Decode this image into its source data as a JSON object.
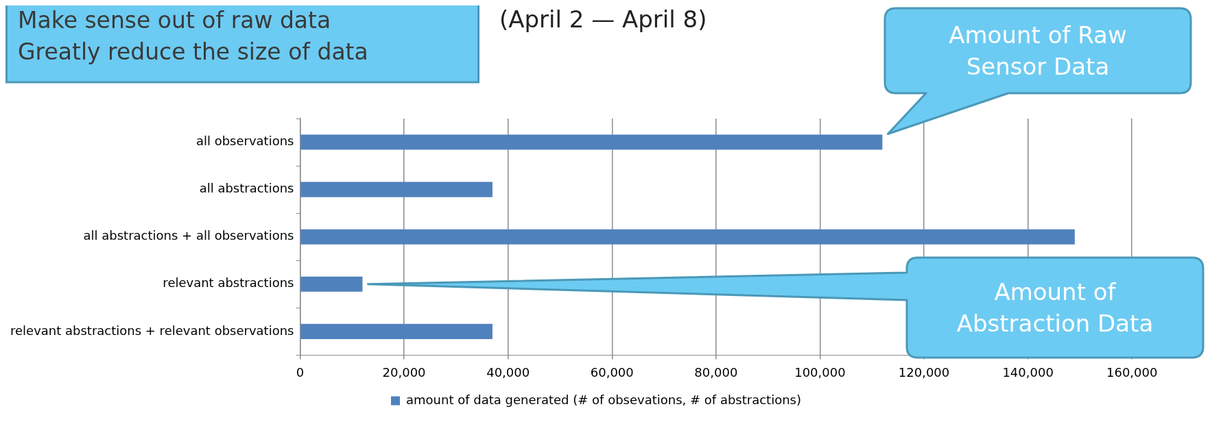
{
  "chart_data": {
    "type": "bar",
    "orientation": "horizontal",
    "title": "(April 2 — April 8)",
    "categories": [
      "all observations",
      "all abstractions",
      "all abstractions + all observations",
      "relevant abstractions",
      "relevant abstractions + relevant observations"
    ],
    "series": [
      {
        "name": "amount of data generated (# of obsevations, # of abstractions)",
        "color": "#4f81bd",
        "values": [
          112000,
          37000,
          149000,
          12000,
          37000
        ]
      }
    ],
    "xlim": [
      0,
      170000
    ],
    "xticks": [
      {
        "value": 0,
        "label": "0"
      },
      {
        "value": 20000,
        "label": "20,000"
      },
      {
        "value": 40000,
        "label": "40,000"
      },
      {
        "value": 60000,
        "label": "60,000"
      },
      {
        "value": 80000,
        "label": "80,000"
      },
      {
        "value": 100000,
        "label": "100,000"
      },
      {
        "value": 120000,
        "label": "120,000"
      },
      {
        "value": 140000,
        "label": "140,000"
      },
      {
        "value": 160000,
        "label": "160,000"
      }
    ],
    "grid": "x",
    "legend": "bottom",
    "annotations": [
      "Make sense out of raw data",
      "Greatly reduce the size of data",
      "Amount of Raw Sensor Data",
      "Amount of Abstraction Data"
    ]
  }
}
